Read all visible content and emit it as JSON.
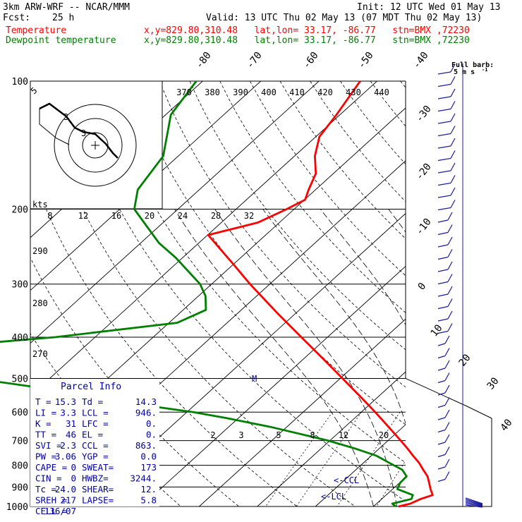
{
  "header": {
    "model": "3km ARW-WRF -- NCAR/MMM",
    "init": "Init: 12 UTC Wed 01 May 13",
    "fcst_label": "Fcst:",
    "fcst_value": "25 h",
    "valid": "Valid: 13 UTC Thu 02 May 13 (07 MDT Thu 02 May 13)",
    "temp_label": "Temperature",
    "temp_info": "x,y=829.80,310.48   lat,lon= 33.17, -86.77   stn=BMX ,72230",
    "dew_label": "Dewpoint temperature",
    "dew_info": "x,y=829.80,310.48   lat,lon= 33.17, -86.77   stn=BMX ,72230",
    "barb_title": "Full barb:",
    "barb_units": "5 m s",
    "barb_exp": "-1"
  },
  "colors": {
    "temperature": "#ff0000",
    "dewpoint": "#008000",
    "parcel_text": "#0000a0",
    "wind": "#1a1aa0"
  },
  "chart_data": {
    "type": "line",
    "plot": "skew-T log-p sounding",
    "pressure_levels": [
      100,
      200,
      300,
      400,
      500,
      600,
      700,
      800,
      900,
      1000
    ],
    "isotherm_labels": [
      "-80",
      "-70",
      "-60",
      "-50",
      "-40",
      "-30",
      "-20",
      "-10",
      "0",
      "10",
      "20",
      "30",
      "40"
    ],
    "theta_labels": [
      "370",
      "380",
      "390",
      "400",
      "410",
      "420",
      "430",
      "440"
    ],
    "theta_side_labels": [
      "290",
      "280",
      "270"
    ],
    "mixing_ratio_labels": [
      "2",
      "3",
      "5",
      "8",
      "12",
      "20"
    ],
    "hodograph": {
      "units_label": "kts",
      "speed_labels": [
        "8",
        "12",
        "16",
        "20",
        "24",
        "28",
        "32"
      ],
      "corner_label": "5",
      "ring_labels": [
        "3",
        "3"
      ]
    },
    "annotations": [
      "M",
      "<-CCL",
      "<-LCL"
    ],
    "series": [
      {
        "name": "Temperature",
        "pressure": [
          1000,
          985,
          960,
          940,
          910,
          880,
          850,
          820,
          790,
          760,
          730,
          700,
          650,
          600,
          550,
          500,
          450,
          400,
          350,
          300,
          270,
          250,
          230,
          215,
          200,
          190,
          180,
          165,
          150,
          135,
          120,
          110,
          100
        ],
        "temperature": [
          14.3,
          15.8,
          16.7,
          18.0,
          16.5,
          15.1,
          13.6,
          11.6,
          9.6,
          7.2,
          4.8,
          2.2,
          -2.5,
          -7.6,
          -13.3,
          -19.6,
          -26.6,
          -34.5,
          -43.4,
          -53.4,
          -59.9,
          -64.7,
          -69.9,
          -63.7,
          -61.3,
          -59.9,
          -61.2,
          -63.0,
          -66.5,
          -69.4,
          -70.6,
          -71.7,
          -72.9
        ]
      },
      {
        "name": "Dewpoint temperature",
        "pressure": [
          1000,
          985,
          960,
          940,
          910,
          880,
          850,
          820,
          790,
          760,
          730,
          700,
          650,
          620,
          600,
          575,
          550,
          525,
          500,
          480,
          460,
          440,
          420,
          400,
          370,
          345,
          320,
          300,
          260,
          240,
          200,
          180,
          150,
          120,
          100
        ],
        "temperature": [
          13.8,
          12.7,
          15.1,
          14.6,
          10.8,
          10.1,
          10.0,
          8.0,
          4.5,
          0.9,
          -4.3,
          -10.3,
          -22.8,
          -32.0,
          -38.9,
          -50.0,
          -59.9,
          -70.3,
          -82.9,
          -95.2,
          -100.6,
          -95.9,
          -93.6,
          -76.9,
          -58.6,
          -56.1,
          -58.8,
          -62.0,
          -71.2,
          -76.9,
          -87.5,
          -90.6,
          -92.6,
          -99.1,
          -101.1
        ]
      }
    ]
  },
  "parcel_info": {
    "title": "Parcel Info",
    "rows": [
      [
        "T  =",
        "15.3",
        "Td =",
        "14.3"
      ],
      [
        "LI =",
        "3.3",
        "LCL =",
        "946."
      ],
      [
        "K  =",
        "31",
        "LFC =",
        "0."
      ],
      [
        "TT =",
        "46",
        "EL  =",
        "0."
      ],
      [
        "SVI =",
        "2.3",
        "CCL =",
        "863."
      ],
      [
        "PW =",
        "3.06",
        "YGP =",
        "0.0"
      ],
      [
        "CAPE =",
        "0",
        "SWEAT=",
        "173"
      ],
      [
        "CIN =",
        "0",
        "HWBZ=",
        "3244."
      ],
      [
        "Tc =",
        "24.0",
        "SHEAR=",
        "12."
      ],
      [
        "SREH =",
        "217",
        "LAPSE=",
        "5.8"
      ],
      [
        "CELL =",
        "136/07",
        "",
        ""
      ]
    ]
  }
}
